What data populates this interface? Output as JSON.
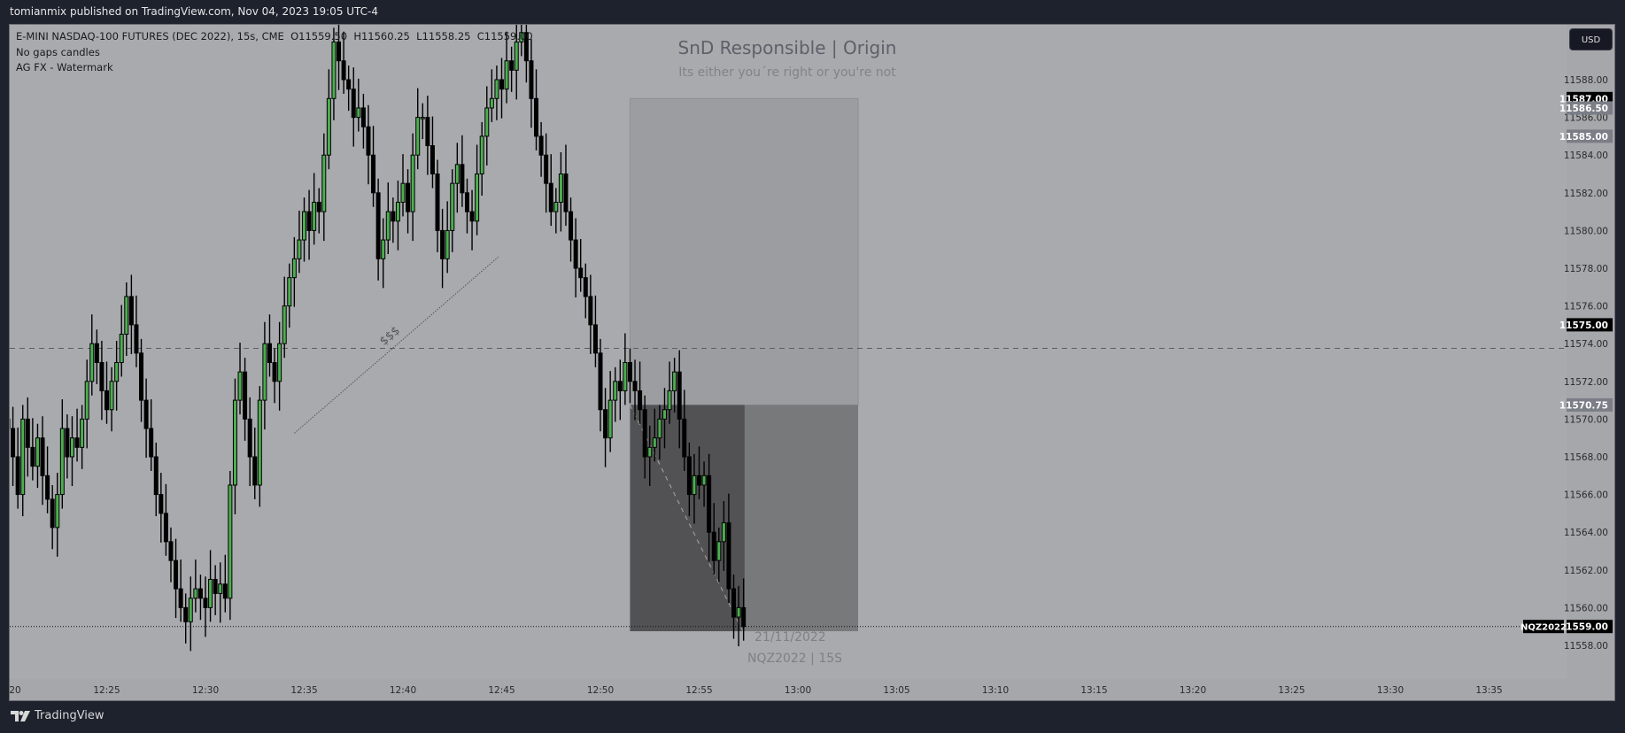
{
  "topbar": {
    "text": "tomianmix published on TradingView.com, Nov 04, 2023 19:05 UTC-4"
  },
  "legend": {
    "symbol_line": "E-MINI NASDAQ-100 FUTURES (DEC 2022), 15s, CME  O11559.50  H11560.25  L11558.25  C11559.00",
    "indicator_1": "No gaps candles",
    "indicator_2": "AG FX - Watermark"
  },
  "watermark": {
    "title": "SnD Responsible | Origin",
    "subtitle": "Its either you´re right or you're not"
  },
  "annotations": {
    "date": "21/11/2022",
    "symbol_interval": "NQZ2022 | 15S",
    "trendline_label": "$$$"
  },
  "currency_button": "USD",
  "brand": "TradingView",
  "colors": {
    "background": "#a9aaae",
    "up": "#4caf50",
    "down": "#000000",
    "topbar": "#1e222d"
  },
  "chart_data": {
    "type": "candlestick",
    "interval": "15s",
    "start_time": "12:20:00",
    "ylim": [
      11556,
      11591
    ],
    "price_ticks": [
      "11588.00",
      "11586.00",
      "11584.00",
      "11582.00",
      "11580.00",
      "11578.00",
      "11576.00",
      "11574.00",
      "11572.00",
      "11570.00",
      "11568.00",
      "11566.00",
      "11564.00",
      "11562.00",
      "11560.00",
      "11558.00"
    ],
    "time_ticks": [
      "20",
      "12:25",
      "12:30",
      "12:35",
      "12:40",
      "12:45",
      "12:50",
      "12:55",
      "13:00",
      "13:05",
      "13:10",
      "13:15",
      "13:20",
      "13:25",
      "13:30",
      "13:35"
    ],
    "closes": [
      11569.5,
      11568,
      11566,
      11570,
      11568.5,
      11567.5,
      11569,
      11567,
      11565.75,
      11564.25,
      11566,
      11569.5,
      11568,
      11569,
      11568.5,
      11570,
      11572,
      11574,
      11573,
      11571.5,
      11570.5,
      11572,
      11573,
      11574.5,
      11576.5,
      11575,
      11573.5,
      11571,
      11569.5,
      11568,
      11566,
      11565,
      11563.5,
      11562.5,
      11561,
      11560,
      11559.25,
      11560.5,
      11561,
      11560.5,
      11560,
      11561.5,
      11560.75,
      11561.25,
      11560.5,
      11566.5,
      11571,
      11572.5,
      11570,
      11568,
      11566.5,
      11571,
      11574,
      11573,
      11572,
      11574,
      11576,
      11577.5,
      11578.5,
      11579.5,
      11581,
      11580,
      11581.5,
      11581,
      11584,
      11587,
      11590,
      11589,
      11588,
      11587.5,
      11586,
      11586.5,
      11585.5,
      11584,
      11582,
      11578.5,
      11579.5,
      11581,
      11580.5,
      11581.5,
      11582.5,
      11581,
      11584,
      11586,
      11586,
      11584.5,
      11583,
      11580,
      11578.5,
      11580,
      11582.5,
      11583.5,
      11582,
      11581,
      11580.5,
      11583,
      11585,
      11586.5,
      11587,
      11588,
      11587.5,
      11589,
      11588.5,
      11590,
      11590.5,
      11589,
      11587,
      11585,
      11584,
      11582.5,
      11581,
      11581.5,
      11583,
      11581,
      11579.5,
      11578,
      11577.5,
      11576.5,
      11575,
      11573.5,
      11570.5,
      11569,
      11571,
      11572,
      11571.5,
      11573,
      11572,
      11571.5,
      11570.5,
      11568,
      11568.5,
      11569,
      11570,
      11570.5,
      11571.5,
      11572.5,
      11570,
      11568,
      11566,
      11567,
      11566.5,
      11567,
      11564,
      11562.5,
      11563.5,
      11564.5,
      11561,
      11559.5,
      11560,
      11559
    ],
    "price_labels": [
      {
        "text": "11587.00",
        "price": 11587,
        "style": "black"
      },
      {
        "text": "11586.50",
        "price": 11586.5,
        "style": "gray"
      },
      {
        "text": "11585.00",
        "price": 11585,
        "style": "gray"
      },
      {
        "text": "11575.00",
        "price": 11575,
        "style": "black"
      },
      {
        "text": "11570.75",
        "price": 11570.75,
        "style": "gray"
      },
      {
        "text": "11559.00",
        "price": 11559,
        "style": "black"
      }
    ],
    "symbol_label": "NQZ2022",
    "last_price": 11559,
    "horizontal_line": 11573.75,
    "position": {
      "entry": 11570.75,
      "stop": 11587,
      "target": 11558.75,
      "start": "12:51:30",
      "filled_until": "12:57:18",
      "end": "13:03:03"
    },
    "trendline": {
      "from": [
        "12:34:30",
        11569.25
      ],
      "to": [
        "12:44:50",
        11578.6
      ]
    }
  }
}
